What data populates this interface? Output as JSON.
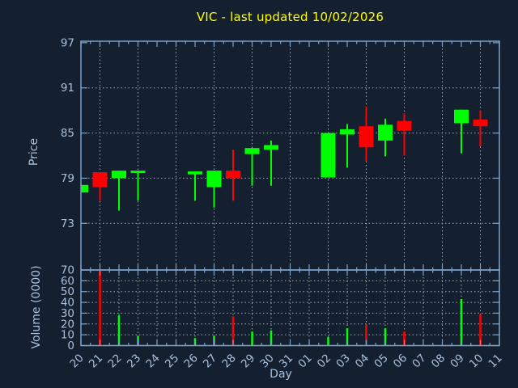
{
  "chart_data": {
    "type": "candlestick",
    "title": "VIC - last updated 10/02/2026",
    "x_axis": {
      "label": "Day",
      "tick_labels": [
        "20",
        "21",
        "22",
        "23",
        "24",
        "25",
        "26",
        "27",
        "28",
        "29",
        "30",
        "31",
        "01",
        "02",
        "03",
        "04",
        "05",
        "06",
        "07",
        "08",
        "09",
        "10",
        "11"
      ],
      "tick_label_rotation_deg": -45,
      "grid_step_price_panel": 2,
      "grid_step_volume_panel": 1
    },
    "price_axis": {
      "label": "Price",
      "ticks": [
        97,
        91,
        85,
        79,
        73
      ],
      "ylim": [
        66.8,
        97.2
      ],
      "grid": true
    },
    "volume_axis": {
      "label": "Volume (0000)",
      "ticks": [
        70,
        60,
        50,
        40,
        30,
        20,
        10,
        0
      ],
      "ylim": [
        0,
        70
      ],
      "grid": true
    },
    "series": [
      {
        "day": "20",
        "open": 77.1,
        "high": 78.1,
        "low": 77.1,
        "close": 78.1,
        "volume": 0
      },
      {
        "day": "21",
        "open": 79.8,
        "high": 79.8,
        "low": 76.0,
        "close": 77.8,
        "volume": 69
      },
      {
        "day": "22",
        "open": 79.0,
        "high": 80.0,
        "low": 74.7,
        "close": 80.0,
        "volume": 28
      },
      {
        "day": "23",
        "open": 79.7,
        "high": 80.0,
        "low": 76.0,
        "close": 80.0,
        "volume": 9
      },
      {
        "day": "26",
        "open": 79.5,
        "high": 79.9,
        "low": 76.0,
        "close": 79.9,
        "volume": 7
      },
      {
        "day": "27",
        "open": 77.8,
        "high": 80.0,
        "low": 75.1,
        "close": 80.0,
        "volume": 9
      },
      {
        "day": "28",
        "open": 80.0,
        "high": 82.8,
        "low": 76.0,
        "close": 79.0,
        "volume": 27
      },
      {
        "day": "29",
        "open": 82.2,
        "high": 83.0,
        "low": 78.0,
        "close": 83.0,
        "volume": 13
      },
      {
        "day": "30",
        "open": 82.8,
        "high": 84.0,
        "low": 78.0,
        "close": 83.4,
        "volume": 14
      },
      {
        "day": "02",
        "open": 79.1,
        "high": 85.0,
        "low": 79.1,
        "close": 85.0,
        "volume": 8
      },
      {
        "day": "03",
        "open": 84.8,
        "high": 86.2,
        "low": 80.4,
        "close": 85.5,
        "volume": 16
      },
      {
        "day": "04",
        "open": 85.9,
        "high": 88.5,
        "low": 81.2,
        "close": 83.1,
        "volume": 19
      },
      {
        "day": "05",
        "open": 84.0,
        "high": 86.9,
        "low": 81.9,
        "close": 86.1,
        "volume": 16
      },
      {
        "day": "06",
        "open": 86.6,
        "high": 87.6,
        "low": 82.0,
        "close": 85.3,
        "volume": 13
      },
      {
        "day": "09",
        "open": 86.3,
        "high": 88.1,
        "low": 82.3,
        "close": 88.1,
        "volume": 43
      },
      {
        "day": "10",
        "open": 86.8,
        "high": 88.0,
        "low": 83.2,
        "close": 85.9,
        "volume": 29
      }
    ],
    "colors": {
      "background": "#141f2f",
      "up": "#00ff00",
      "down": "#ff0000",
      "axis": "#7da2c9",
      "tick_text": "#a9c0dd",
      "grid": "#c9ced7",
      "title": "#ffff00"
    }
  }
}
